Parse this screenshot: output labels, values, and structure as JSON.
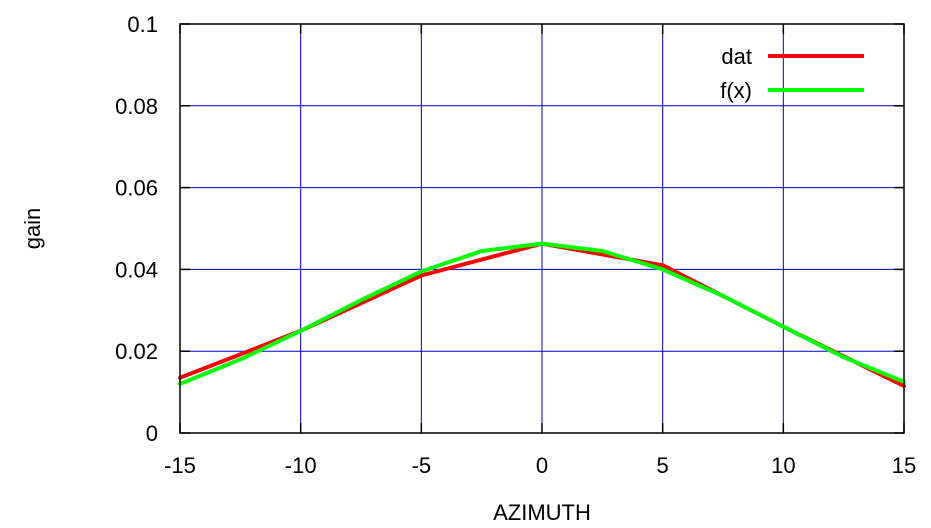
{
  "chart_data": {
    "type": "line",
    "xlabel": "AZIMUTH",
    "ylabel": "gain",
    "xlim": [
      -15,
      15
    ],
    "ylim": [
      0,
      0.1
    ],
    "x_ticks": [
      -15,
      -10,
      -5,
      0,
      5,
      10,
      15
    ],
    "x_tick_labels": [
      "-15",
      "-10",
      "-5",
      "0",
      "5",
      "10",
      "15"
    ],
    "y_ticks": [
      0,
      0.02,
      0.04,
      0.06,
      0.08,
      0.1
    ],
    "y_tick_labels": [
      "0",
      "0.02",
      "0.04",
      "0.06",
      "0.08",
      "0.1"
    ],
    "grid": true,
    "grid_color": "#0000cc",
    "legend_position": "top-right",
    "series": [
      {
        "name": "dat",
        "color": "#ff0000",
        "x": [
          -15,
          -10,
          -5,
          0,
          5,
          10,
          15
        ],
        "y": [
          0.0135,
          0.025,
          0.0385,
          0.0463,
          0.041,
          0.026,
          0.0115
        ]
      },
      {
        "name": "f(x)",
        "color": "#00ff00",
        "x": [
          -15,
          -12.5,
          -10,
          -7.5,
          -5,
          -2.5,
          0,
          2.5,
          5,
          7.5,
          10,
          12.5,
          15
        ],
        "y": [
          0.012,
          0.018,
          0.025,
          0.0325,
          0.0395,
          0.0445,
          0.0463,
          0.0445,
          0.04,
          0.0335,
          0.026,
          0.0185,
          0.0125
        ]
      }
    ]
  }
}
